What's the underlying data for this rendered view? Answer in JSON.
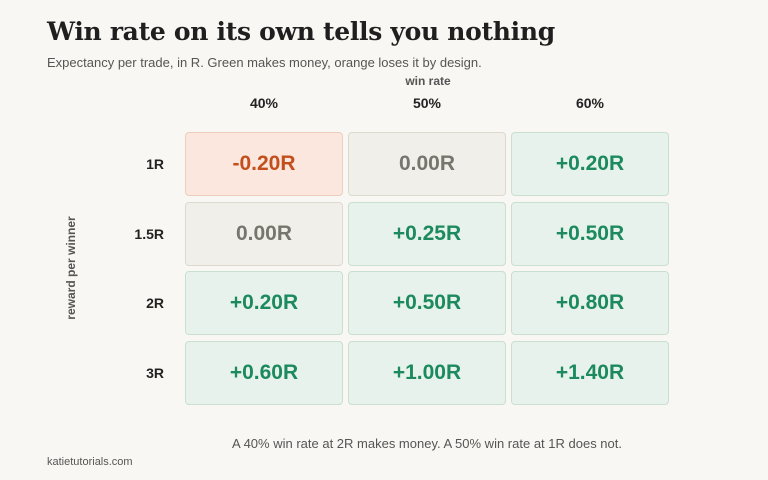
{
  "chart_data": {
    "type": "heatmap",
    "title": "Win rate on its own tells you nothing",
    "subtitle": "Expectancy per trade, in R. Green makes money, orange loses it by design.",
    "xlabel": "win rate",
    "ylabel": "reward per winner",
    "x_categories": [
      "40%",
      "50%",
      "60%"
    ],
    "y_categories": [
      "1R",
      "1.5R",
      "2R",
      "3R"
    ],
    "values": [
      [
        -0.2,
        0.0,
        0.2
      ],
      [
        0.0,
        0.25,
        0.5
      ],
      [
        0.2,
        0.5,
        0.8
      ],
      [
        0.6,
        1.0,
        1.4
      ]
    ],
    "cell_labels": [
      [
        "-0.20R",
        "0.00R",
        "+0.20R"
      ],
      [
        "0.00R",
        "+0.25R",
        "+0.50R"
      ],
      [
        "+0.20R",
        "+0.50R",
        "+0.80R"
      ],
      [
        "+0.60R",
        "+1.00R",
        "+1.40R"
      ]
    ],
    "colors": {
      "positive": "#1c8a5e",
      "zero": "#77756d",
      "negative": "#c24f1c"
    },
    "annotation": "A 40% win rate at 2R makes money. A 50% win rate at 1R does not."
  },
  "footer": {
    "source": "katietutorials.com"
  }
}
